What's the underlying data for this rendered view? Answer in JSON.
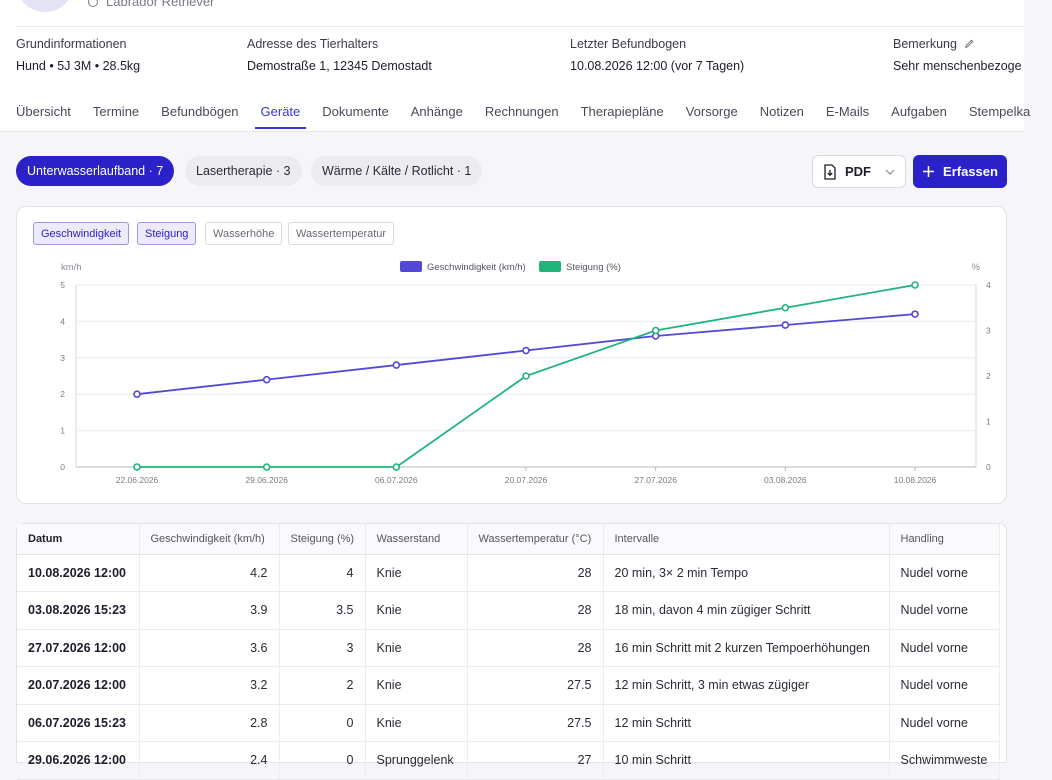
{
  "patient": {
    "breed": "Labrador Retriever"
  },
  "info": {
    "grund_label": "Grundinformationen",
    "grund_value": "Hund • 5J 3M • 28.5kg",
    "adresse_label": "Adresse des Tierhalters",
    "adresse_value": "Demostraße 1, 12345 Demostadt",
    "befund_label": "Letzter Befundbogen",
    "befund_value": "10.08.2026 12:00 (vor 7 Tagen)",
    "bemerkung_label": "Bemerkung",
    "bemerkung_value": "Sehr menschenbezoge"
  },
  "tabs": [
    "Übersicht",
    "Termine",
    "Befundbögen",
    "Geräte",
    "Dokumente",
    "Anhänge",
    "Rechnungen",
    "Therapiepläne",
    "Vorsorge",
    "Notizen",
    "E-Mails",
    "Aufgaben",
    "Stempelka"
  ],
  "active_tab": "Geräte",
  "device_pills": [
    "Unterwasserlaufband · 7",
    "Lasertherapie · 3",
    "Wärme / Kälte / Rotlicht · 1"
  ],
  "actions": {
    "pdf_label": "PDF",
    "add_label": "Erfassen"
  },
  "metric_buttons": [
    "Geschwindigkeit",
    "Steigung",
    "Wasserhöhe",
    "Wassertemperatur"
  ],
  "colors": {
    "accent": "#2b21c8",
    "speed": "#5448d6",
    "incline": "#1fb57a"
  },
  "chart_data": {
    "type": "line",
    "categories": [
      "22.06.2026",
      "29.06.2026",
      "06.07.2026",
      "20.07.2026",
      "27.07.2026",
      "03.08.2026",
      "10.08.2026"
    ],
    "series": [
      {
        "name": "Geschwindigkeit (km/h)",
        "axis": "left",
        "values": [
          2.0,
          2.4,
          2.8,
          3.2,
          3.6,
          3.9,
          4.2
        ]
      },
      {
        "name": "Steigung (%)",
        "axis": "right",
        "values": [
          0,
          0,
          0,
          2,
          3,
          3.5,
          4
        ]
      }
    ],
    "y_left": {
      "label": "km/h",
      "min": 0,
      "max": 5,
      "ticks": [
        "0",
        "1",
        "2",
        "3",
        "4",
        "5"
      ]
    },
    "y_right": {
      "label": "%",
      "min": 0,
      "max": 4,
      "ticks": [
        "0",
        "1",
        "2",
        "3",
        "4"
      ]
    },
    "legend": "top-center",
    "grid": true
  },
  "table": {
    "headers": [
      "Datum",
      "Geschwindigkeit (km/h)",
      "Steigung (%)",
      "Wasserstand",
      "Wassertemperatur (°C)",
      "Intervalle",
      "Handling"
    ],
    "rows": [
      [
        "10.08.2026 12:00",
        "4.2",
        "4",
        "Knie",
        "28",
        "20 min, 3× 2 min Tempo",
        "Nudel vorne"
      ],
      [
        "03.08.2026 15:23",
        "3.9",
        "3.5",
        "Knie",
        "28",
        "18 min, davon 4 min zügiger Schritt",
        "Nudel vorne"
      ],
      [
        "27.07.2026 12:00",
        "3.6",
        "3",
        "Knie",
        "28",
        "16 min Schritt mit 2 kurzen Tempoerhöhungen",
        "Nudel vorne"
      ],
      [
        "20.07.2026 12:00",
        "3.2",
        "2",
        "Knie",
        "27.5",
        "12 min Schritt, 3 min etwas zügiger",
        "Nudel vorne"
      ],
      [
        "06.07.2026 15:23",
        "2.8",
        "0",
        "Knie",
        "27.5",
        "12 min Schritt",
        "Nudel vorne"
      ],
      [
        "29.06.2026 12:00",
        "2.4",
        "0",
        "Sprunggelenk",
        "27",
        "10 min Schritt",
        "Schwimmweste"
      ]
    ]
  }
}
